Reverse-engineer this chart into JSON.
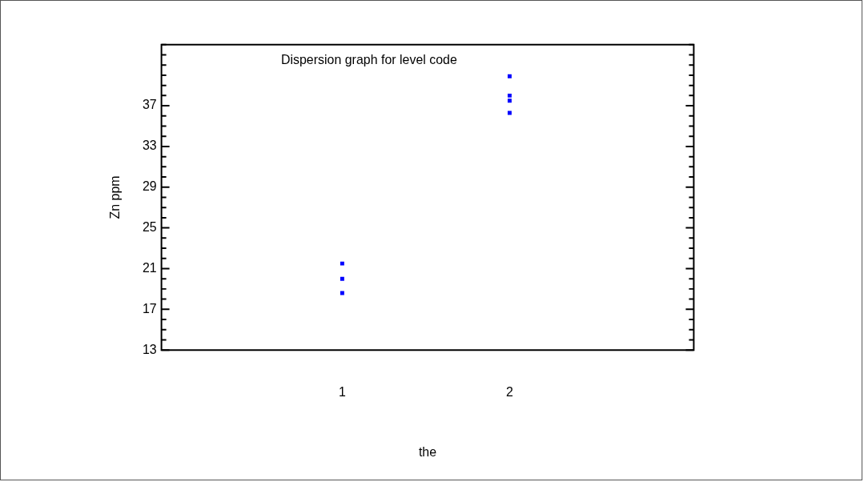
{
  "chart_data": {
    "type": "scatter",
    "title": "Dispersion graph for level code",
    "xlabel": "the",
    "ylabel": "Zn ppm",
    "categories": [
      "1",
      "2"
    ],
    "series": [
      {
        "color": "#0000ff",
        "x": [
          "1",
          "1",
          "1",
          "2",
          "2",
          "2",
          "2"
        ],
        "values": [
          21.5,
          20.0,
          18.6,
          39.9,
          38.0,
          37.5,
          36.3
        ]
      }
    ],
    "marker": "square",
    "legend": false,
    "grid": false,
    "ylim": [
      13,
      43
    ],
    "yticks": [
      13,
      {
        "value": 14,
        "label": null
      },
      {
        "value": 15,
        "label": null
      },
      {
        "value": 16,
        "label": null
      },
      17,
      {
        "value": 18,
        "label": null
      },
      {
        "value": 19,
        "label": null
      },
      {
        "value": 20,
        "label": null
      },
      21,
      {
        "value": 22,
        "label": null
      },
      {
        "value": 23,
        "label": null
      },
      {
        "value": 24,
        "label": null
      },
      25,
      {
        "value": 26,
        "label": null
      },
      {
        "value": 27,
        "label": null
      },
      {
        "value": 28,
        "label": null
      },
      29,
      {
        "value": 30,
        "label": null
      },
      {
        "value": 31,
        "label": null
      },
      {
        "value": 32,
        "label": null
      },
      33,
      {
        "value": 34,
        "label": null
      },
      {
        "value": 35,
        "label": null
      },
      {
        "value": 36,
        "label": null
      },
      37,
      {
        "value": 38,
        "label": null
      },
      {
        "value": 39,
        "label": null
      },
      {
        "value": 40,
        "label": null
      },
      {
        "value": 41,
        "label": null
      },
      {
        "value": 42,
        "label": null
      },
      {
        "value": 43,
        "label": null
      }
    ]
  }
}
